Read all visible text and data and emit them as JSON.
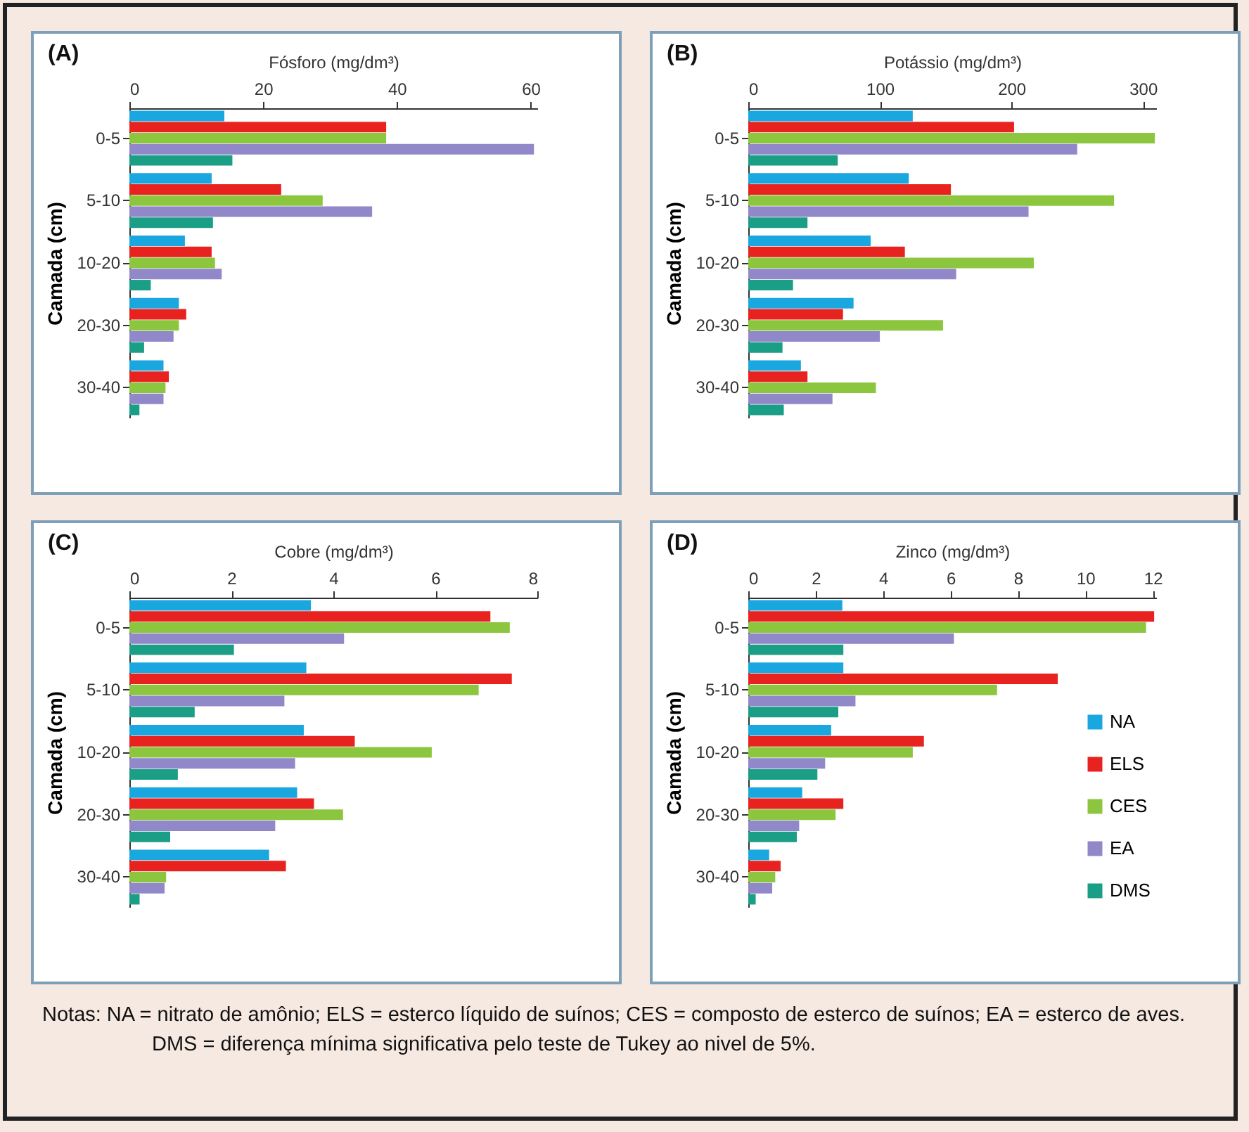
{
  "chart_data": [
    {
      "type": "bar",
      "orientation": "horizontal",
      "title": "(A)",
      "xlabel": "Fósforo (mg/dm³)",
      "ylabel": "Camada (cm)",
      "categories": [
        "0-5",
        "5-10",
        "10-20",
        "20-30",
        "30-40"
      ],
      "xlim": [
        0,
        61
      ],
      "xticks": [
        0,
        20,
        40,
        60
      ],
      "grid": false,
      "legend": false,
      "series": [
        {
          "color": "#1aa7e0",
          "values": [
            14.2,
            12.3,
            8.3,
            7.4,
            5.1
          ]
        },
        {
          "color": "#e8231f",
          "values": [
            38.4,
            22.7,
            12.3,
            8.5,
            5.9
          ]
        },
        {
          "color": "#8cc63f",
          "values": [
            38.4,
            28.9,
            12.8,
            7.4,
            5.4
          ]
        },
        {
          "color": "#9088c8",
          "values": [
            60.5,
            36.3,
            13.8,
            6.6,
            5.1
          ]
        },
        {
          "color": "#1a9e86",
          "values": [
            15.4,
            12.5,
            3.2,
            2.2,
            1.5
          ]
        }
      ]
    },
    {
      "type": "bar",
      "orientation": "horizontal",
      "title": "(B)",
      "xlabel": "Potássio (mg/dm³)",
      "ylabel": "Camada (cm)",
      "categories": [
        "0-5",
        "5-10",
        "10-20",
        "20-30",
        "30-40"
      ],
      "xlim": [
        0,
        310
      ],
      "xticks": [
        0,
        100,
        200,
        300
      ],
      "grid": false,
      "legend": false,
      "series": [
        {
          "color": "#1aa7e0",
          "values": [
            125,
            122,
            93,
            80,
            40
          ]
        },
        {
          "color": "#e8231f",
          "values": [
            202,
            154,
            119,
            72,
            45
          ]
        },
        {
          "color": "#8cc63f",
          "values": [
            309,
            278,
            217,
            148,
            97
          ]
        },
        {
          "color": "#9088c8",
          "values": [
            250,
            213,
            158,
            100,
            64
          ]
        },
        {
          "color": "#1a9e86",
          "values": [
            68,
            45,
            34,
            26,
            27
          ]
        }
      ]
    },
    {
      "type": "bar",
      "orientation": "horizontal",
      "title": "(C)",
      "xlabel": "Cobre (mg/dm³)",
      "ylabel": "Camada (cm)",
      "categories": [
        "0-5",
        "5-10",
        "10-20",
        "20-30",
        "30-40"
      ],
      "xlim": [
        0,
        8
      ],
      "xticks": [
        0,
        2,
        4,
        6,
        8
      ],
      "grid": false,
      "legend": false,
      "series": [
        {
          "color": "#1aa7e0",
          "values": [
            3.56,
            3.47,
            3.42,
            3.29,
            2.74
          ]
        },
        {
          "color": "#e8231f",
          "values": [
            7.08,
            7.5,
            4.42,
            3.62,
            3.07
          ]
        },
        {
          "color": "#8cc63f",
          "values": [
            7.46,
            6.85,
            5.93,
            4.19,
            0.72
          ]
        },
        {
          "color": "#9088c8",
          "values": [
            4.21,
            3.04,
            3.25,
            2.86,
            0.69
          ]
        },
        {
          "color": "#1a9e86",
          "values": [
            2.05,
            1.28,
            0.95,
            0.8,
            0.2
          ]
        }
      ]
    },
    {
      "type": "bar",
      "orientation": "horizontal",
      "title": "(D)",
      "xlabel": "Zinco (mg/dm³)",
      "ylabel": "Camada (cm)",
      "categories": [
        "0-5",
        "5-10",
        "10-20",
        "20-30",
        "30-40"
      ],
      "xlim": [
        0,
        12.1
      ],
      "xticks": [
        0,
        2,
        4,
        6,
        8,
        10,
        12
      ],
      "grid": false,
      "legend": "bottom right",
      "series": [
        {
          "name": "NA",
          "color": "#1aa7e0",
          "values": [
            2.79,
            2.82,
            2.46,
            1.6,
            0.62
          ]
        },
        {
          "name": "ELS",
          "color": "#e8231f",
          "values": [
            12.04,
            9.18,
            5.21,
            2.82,
            0.96
          ]
        },
        {
          "name": "CES",
          "color": "#8cc63f",
          "values": [
            11.8,
            7.38,
            4.88,
            2.59,
            0.8
          ]
        },
        {
          "name": "EA",
          "color": "#9088c8",
          "values": [
            6.1,
            3.18,
            2.28,
            1.51,
            0.71
          ]
        },
        {
          "name": "DMS",
          "color": "#1a9e86",
          "values": [
            2.82,
            2.67,
            2.05,
            1.44,
            0.22
          ]
        }
      ],
      "annotations": [
        "Notas:    NA = nitrato de amônio; ELS = esterco líquido de suínos; CES = composto de esterco de suínos; EA = esterco de aves.",
        "DMS = diferença mínima significativa pelo teste de Tukey ao nivel de 5%."
      ]
    }
  ]
}
